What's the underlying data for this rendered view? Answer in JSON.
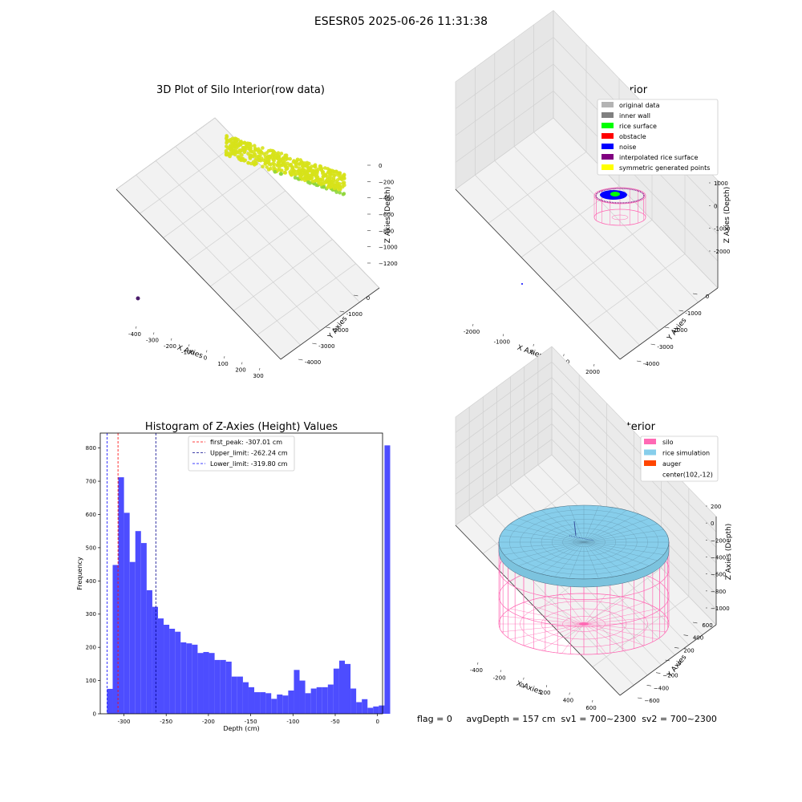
{
  "suptitle": "ESESR05 2025-06-26 11:31:38",
  "status_line": "flag = 0     avgDepth = 157 cm  sv1 = 700~2300  sv2 = 700~2300",
  "chart_data": [
    {
      "type": "scatter3d",
      "title": "3D Plot of Silo Interior(row data)",
      "xlabel": "X Axies",
      "ylabel": "Y Axies",
      "zlabel": "Z Axies (Depth)",
      "x_ticks": [
        "-400",
        "-300",
        "-200",
        "-100",
        "0",
        "100",
        "200",
        "300"
      ],
      "y_ticks": [
        "0",
        "-1000",
        "-2000",
        "-3000",
        "-4000"
      ],
      "z_ticks": [
        "0",
        "−200",
        "−400",
        "−600",
        "−800",
        "−1000",
        "−1200"
      ],
      "grid": true,
      "colors": [
        "#d7e21a",
        "#8fd63a",
        "#4b1c6b"
      ]
    },
    {
      "type": "scatter3d",
      "title": "3D classify of Silo Interior",
      "xlabel": "X Axies",
      "ylabel": "Y Axies",
      "zlabel": "Z Axies (Depth)",
      "x_ticks": [
        "-2000",
        "-1000",
        "0",
        "1000",
        "2000"
      ],
      "y_ticks": [
        "0",
        "-1000",
        "-2000",
        "-3000",
        "-4000"
      ],
      "z_ticks": [
        "1000",
        "0",
        "-1000",
        "-2000"
      ],
      "grid": true,
      "legend_position": "top-right",
      "legend": [
        {
          "label": "original data",
          "color": "#b3b3b3"
        },
        {
          "label": "inner wall",
          "color": "#808080"
        },
        {
          "label": "rice surface",
          "color": "#00ff00"
        },
        {
          "label": "obstacle",
          "color": "#ff0000"
        },
        {
          "label": "noise",
          "color": "#0000ff"
        },
        {
          "label": "interpolated rice surface",
          "color": "#800080"
        },
        {
          "label": "symmetric generated points",
          "color": "#ffff00"
        }
      ]
    },
    {
      "type": "bar",
      "title": "Histogram of Z-Axies (Height) Values",
      "xlabel": "Depth (cm)",
      "ylabel": "Frequency",
      "xlim": [
        -328,
        6
      ],
      "ylim": [
        0,
        845
      ],
      "bin_width": 6.7,
      "bin_start": -320,
      "values": [
        75,
        448,
        712,
        605,
        457,
        550,
        514,
        372,
        322,
        287,
        268,
        256,
        247,
        215,
        212,
        208,
        183,
        186,
        183,
        162,
        162,
        157,
        112,
        112,
        95,
        80,
        65,
        65,
        62,
        45,
        58,
        55,
        70,
        132,
        100,
        62,
        76,
        80,
        80,
        88,
        136,
        160,
        150,
        76,
        35,
        44,
        18,
        22,
        25,
        808
      ],
      "x_ticks": [
        -300,
        -250,
        -200,
        -150,
        -100,
        -50,
        0
      ],
      "y_ticks": [
        0,
        100,
        200,
        300,
        400,
        500,
        600,
        700,
        800
      ],
      "bar_color": "#4d4dff",
      "vlines": [
        {
          "x": -307.01,
          "color": "#ff0000",
          "label": "first_peak: -307.01 cm"
        },
        {
          "x": -262.24,
          "color": "#00008b",
          "label": "Upper_limit: -262.24 cm"
        },
        {
          "x": -319.8,
          "color": "#0000ff",
          "label": "Lower_limit: -319.80 cm"
        }
      ],
      "legend_position": "top-center"
    },
    {
      "type": "surface3d",
      "title": "3D simulation of Silo Interior",
      "xlabel": "X Axies",
      "ylabel": "Y Axies",
      "zlabel": "Z Axies (Depth)",
      "x_ticks": [
        "-400",
        "-200",
        "0",
        "200",
        "400",
        "600"
      ],
      "y_ticks": [
        "600",
        "400",
        "200",
        "0",
        "−200",
        "−400",
        "−600"
      ],
      "z_ticks": [
        "200",
        "0",
        "−200",
        "−400",
        "−600",
        "−800",
        "−1000"
      ],
      "grid": true,
      "legend_position": "top-right",
      "legend": [
        {
          "label": "silo",
          "color": "#ff69b4"
        },
        {
          "label": "rice simulation",
          "color": "#87ceeb"
        },
        {
          "label": "auger",
          "color": "#ff4500"
        },
        {
          "label": "center(102,-12)",
          "color": ""
        }
      ]
    }
  ]
}
